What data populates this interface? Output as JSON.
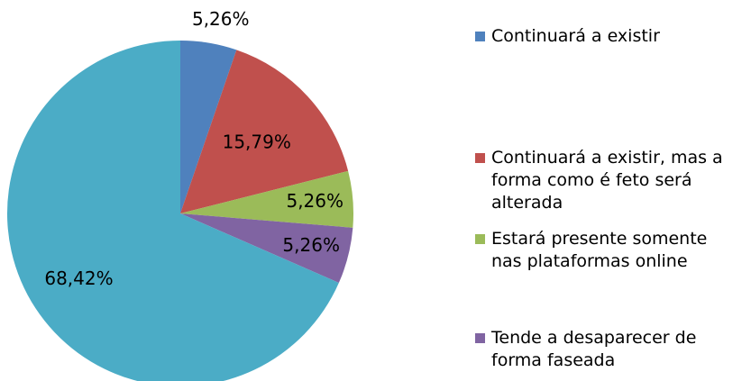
{
  "chart_data": {
    "type": "pie",
    "categories": [
      "Continuará a existir",
      "Continuará a existir, mas a forma como é feto será alterada",
      "Estará presente somente nas plataformas online",
      "Tende a desaparecer de forma faseada",
      null
    ],
    "values": [
      5.26,
      15.79,
      5.26,
      5.26,
      68.42
    ],
    "value_labels": [
      "5,26%",
      "15,79%",
      "5,26%",
      "5,26%",
      "68,42%"
    ],
    "colors": [
      "#4f81bd",
      "#c0504d",
      "#9bbb59",
      "#8064a2",
      "#4bacc6"
    ],
    "legend": "right"
  }
}
